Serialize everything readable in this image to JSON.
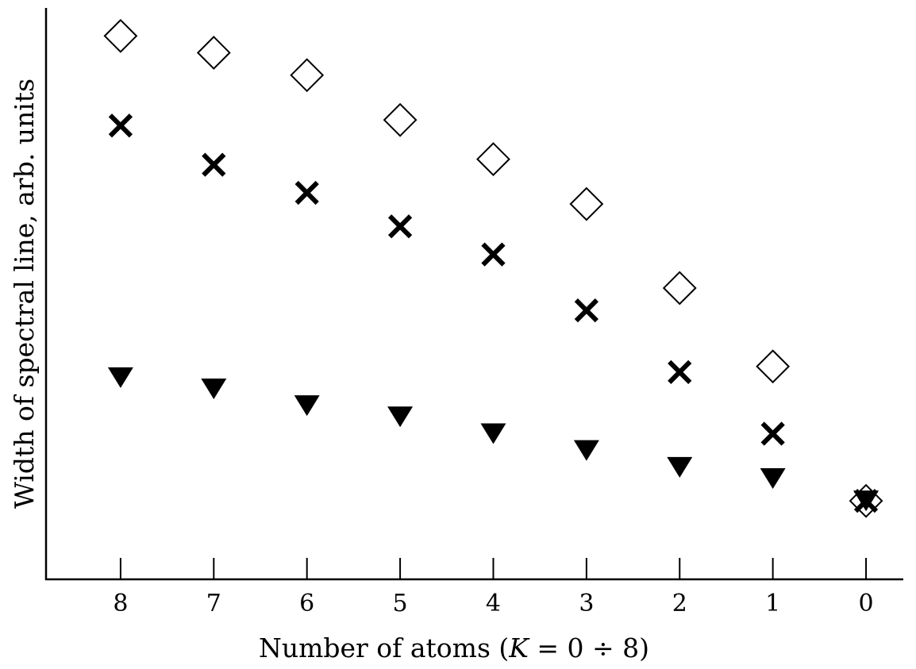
{
  "chart_data": {
    "type": "scatter",
    "title": "",
    "xlabel": "Number of atoms (K = 0 ÷ 8)",
    "xlabel_parts": {
      "prefix": "Number of atoms (",
      "var": "K",
      "suffix": " = 0 ÷ 8)"
    },
    "ylabel": "Width of spectral line, arb. units",
    "x_ticks": [
      "8",
      "7",
      "6",
      "5",
      "4",
      "3",
      "2",
      "1",
      "0"
    ],
    "x": [
      8,
      7,
      6,
      5,
      4,
      3,
      2,
      1,
      0
    ],
    "x_reversed": true,
    "xlim": [
      8.8,
      -0.4
    ],
    "ylim": [
      0,
      10.2
    ],
    "y_ticks_shown": false,
    "grid": false,
    "legend": "none",
    "series": [
      {
        "marker": "open-diamond",
        "color": "#000000",
        "values": [
          9.7,
          9.4,
          9.0,
          8.2,
          7.5,
          6.7,
          5.2,
          3.8,
          1.4
        ]
      },
      {
        "marker": "x-cross",
        "color": "#000000",
        "values": [
          8.1,
          7.4,
          6.9,
          6.3,
          5.8,
          4.8,
          3.7,
          2.6,
          1.4
        ]
      },
      {
        "marker": "filled-down-triangle",
        "color": "#000000",
        "values": [
          3.6,
          3.4,
          3.1,
          2.9,
          2.6,
          2.3,
          2.0,
          1.8,
          1.4
        ]
      }
    ]
  }
}
